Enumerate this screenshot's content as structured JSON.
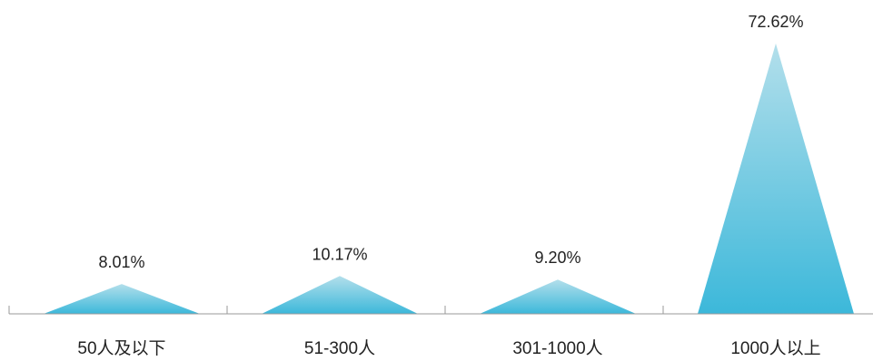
{
  "chart_data": {
    "type": "bar",
    "bar_shape": "triangle",
    "categories": [
      "50人及以下",
      "51-300人",
      "301-1000人",
      "1000人以上"
    ],
    "values": [
      8.01,
      10.17,
      9.2,
      72.62
    ],
    "data_labels": [
      "8.01%",
      "10.17%",
      "9.20%",
      "72.62%"
    ],
    "title": "",
    "xlabel": "",
    "ylabel": "",
    "ylim": [
      0,
      72.62
    ],
    "grid": false,
    "legend": "none",
    "colors": {
      "fill_top": "#b3dfeb",
      "fill_bottom": "#3cb8da",
      "axis": "#999999",
      "text": "#222222"
    }
  }
}
